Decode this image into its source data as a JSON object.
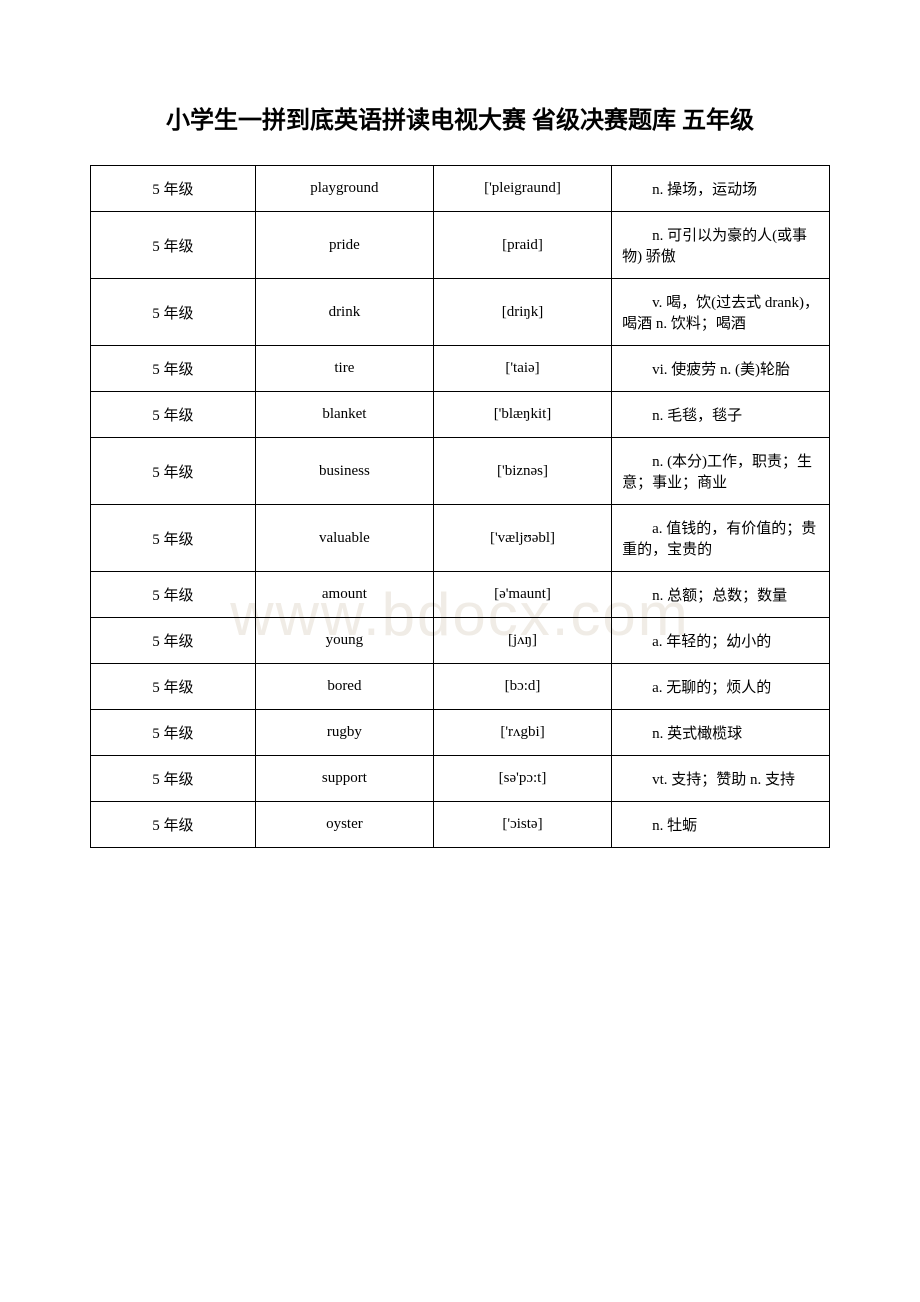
{
  "title": "小学生一拼到底英语拼读电视大赛 省级决赛题库 五年级",
  "watermark": "www.bdocx.com",
  "table": {
    "columns": [
      "grade",
      "word",
      "phonetic",
      "meaning"
    ],
    "rows": [
      {
        "grade": "5 年级",
        "word": "playground",
        "phonetic": "['pleigraund]",
        "meaning": "n. 操场，运动场"
      },
      {
        "grade": "5 年级",
        "word": "pride",
        "phonetic": "[praid]",
        "meaning": "n. 可引以为豪的人(或事物) 骄傲"
      },
      {
        "grade": "5 年级",
        "word": "drink",
        "phonetic": "[driŋk]",
        "meaning": "v. 喝，饮(过去式 drank)，喝酒 n. 饮料；喝酒"
      },
      {
        "grade": "5 年级",
        "word": "tire",
        "phonetic": "['taiə]",
        "meaning": "vi. 使疲劳 n. (美)轮胎"
      },
      {
        "grade": "5 年级",
        "word": "blanket",
        "phonetic": "['blæŋkit]",
        "meaning": "n. 毛毯，毯子"
      },
      {
        "grade": "5 年级",
        "word": "business",
        "phonetic": "['biznəs]",
        "meaning": "n. (本分)工作，职责；生意；事业；商业"
      },
      {
        "grade": "5 年级",
        "word": "valuable",
        "phonetic": "['væljʊəbl]",
        "meaning": "a. 值钱的，有价值的；贵重的，宝贵的"
      },
      {
        "grade": "5 年级",
        "word": "amount",
        "phonetic": "[ə'maunt]",
        "meaning": "n. 总额；总数；数量"
      },
      {
        "grade": "5 年级",
        "word": "young",
        "phonetic": "[jʌŋ]",
        "meaning": "a. 年轻的；幼小的"
      },
      {
        "grade": "5 年级",
        "word": "bored",
        "phonetic": "[bɔ:d]",
        "meaning": "a. 无聊的；烦人的"
      },
      {
        "grade": "5 年级",
        "word": "rugby",
        "phonetic": "['rʌgbi]",
        "meaning": "n. 英式橄榄球"
      },
      {
        "grade": "5 年级",
        "word": "support",
        "phonetic": "[sə'pɔ:t]",
        "meaning": "vt. 支持；赞助 n. 支持"
      },
      {
        "grade": "5 年级",
        "word": "oyster",
        "phonetic": "['ɔistə]",
        "meaning": "n. 牡蛎"
      }
    ]
  }
}
